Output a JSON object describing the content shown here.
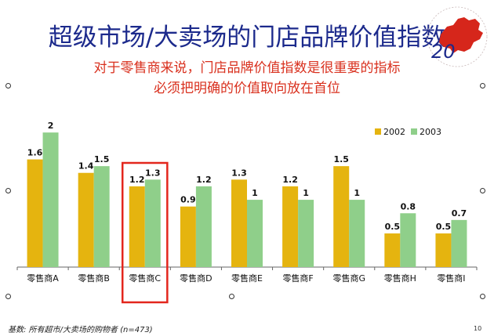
{
  "slide": {
    "title": "超级市场/大卖场的门店品牌价值指数",
    "subtitle_lines": [
      "对于零售商来说，门店品牌价值指数是很重要的指标",
      "必须把明确的价值取向放在首位"
    ],
    "footnote": "基数: 所有超市/大卖场的购物者 (n=473)",
    "page_number": "10",
    "logo": {
      "number": "20",
      "icon": "china-map-logo-icon"
    }
  },
  "colors": {
    "title": "#1c2a8c",
    "subtitle": "#d9301e",
    "series_2002": "#e5b40f",
    "series_2003": "#8fcf8a",
    "highlight_box": "#e3261d"
  },
  "chart_data": {
    "type": "bar",
    "categories": [
      "零售商A",
      "零售商B",
      "零售商C",
      "零售商D",
      "零售商E",
      "零售商F",
      "零售商G",
      "零售商H",
      "零售商I"
    ],
    "series": [
      {
        "name": "2002",
        "values": [
          1.6,
          1.4,
          1.2,
          0.9,
          1.3,
          1.2,
          1.5,
          0.5,
          0.5
        ]
      },
      {
        "name": "2003",
        "values": [
          2,
          1.5,
          1.3,
          1.2,
          1,
          1,
          1,
          0.8,
          0.7
        ]
      }
    ],
    "ylim": [
      0,
      2.2
    ],
    "legend_position": "top-right",
    "highlighted_category": "零售商C",
    "grid": false
  }
}
